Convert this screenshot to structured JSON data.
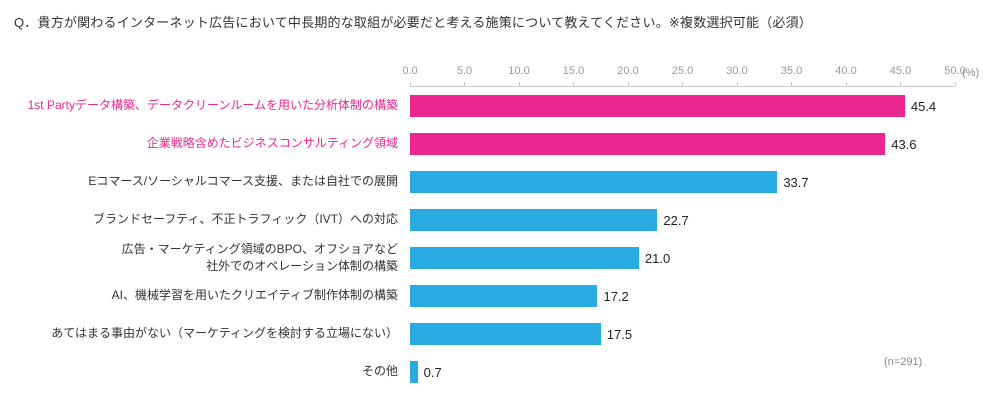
{
  "title": "Q．貴方が関わるインターネット広告において中長期的な取組が必要だと考える施策について教えてください。※複数選択可能（必須）",
  "axis": {
    "unit_label": "(%)"
  },
  "note": "(n=291)",
  "colors": {
    "pink": "#ec268f",
    "cyan": "#29abe2",
    "default_label": "#333333"
  },
  "chart_data": {
    "type": "bar",
    "orientation": "horizontal",
    "xlim": [
      0,
      50
    ],
    "ticks": [
      "0.0",
      "5.0",
      "10.0",
      "15.0",
      "20.0",
      "25.0",
      "30.0",
      "35.0",
      "40.0",
      "45.0",
      "50.0"
    ],
    "unit": "%",
    "sample_size": "n=291",
    "categories": [
      "1st Partyデータ構築、データクリーンルームを用いた分析体制の構築",
      "企業戦略含めたビジネスコンサルティング領域",
      "Eコマース/ソーシャルコマース支援、または自社での展開",
      "ブランドセーフティ、不正トラフィック（IVT）への対応",
      "広告・マーケティング領域のBPO、オフショアなど\n社外でのオペレーション体制の構築",
      "AI、機械学習を用いたクリエイティブ制作体制の構築",
      "あてはまる事由がない（マーケティングを検討する立場にない）",
      "その他"
    ],
    "values": [
      45.4,
      43.6,
      33.7,
      22.7,
      21.0,
      17.2,
      17.5,
      0.7
    ],
    "bar_colors": [
      "pink",
      "pink",
      "cyan",
      "cyan",
      "cyan",
      "cyan",
      "cyan",
      "cyan"
    ],
    "label_colors": [
      "pink",
      "pink",
      "default_label",
      "default_label",
      "default_label",
      "default_label",
      "default_label",
      "default_label"
    ]
  }
}
